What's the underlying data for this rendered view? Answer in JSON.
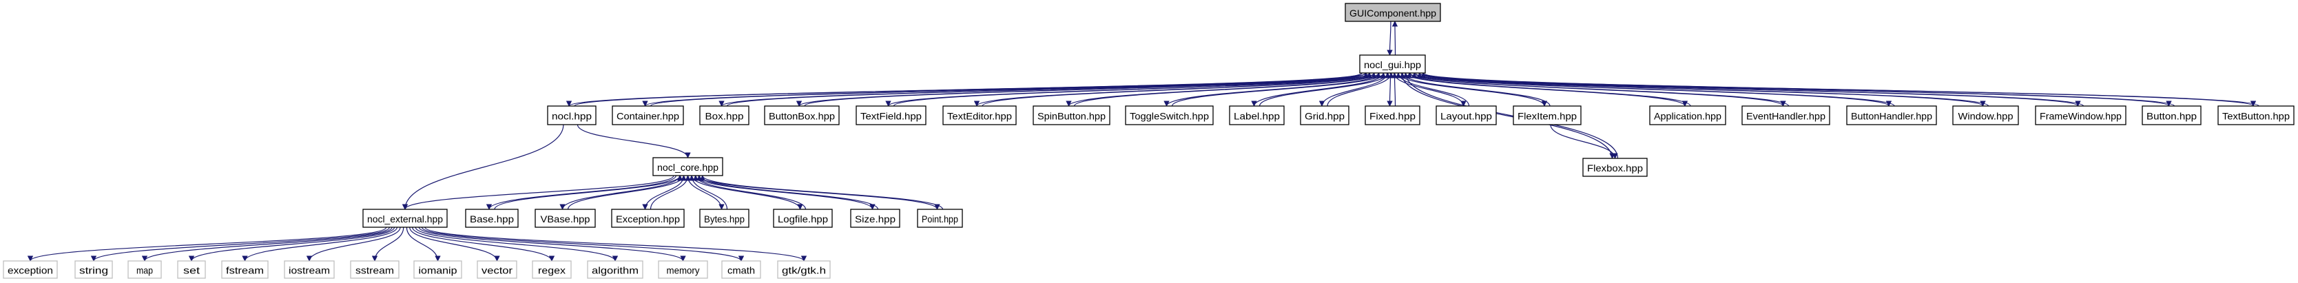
{
  "colors": {
    "edge": "#191970",
    "root_fill": "#bfbfbf",
    "external_border": "#bfbfbf",
    "node_border": "#000000"
  },
  "nodes": [
    {
      "label": "GUIComponent.hpp",
      "kind": "root"
    },
    {
      "label": "nocl_gui.hpp"
    },
    {
      "label": "nocl.hpp"
    },
    {
      "label": "Container.hpp"
    },
    {
      "label": "Box.hpp"
    },
    {
      "label": "ButtonBox.hpp"
    },
    {
      "label": "TextField.hpp"
    },
    {
      "label": "TextEditor.hpp"
    },
    {
      "label": "SpinButton.hpp"
    },
    {
      "label": "ToggleSwitch.hpp"
    },
    {
      "label": "Label.hpp"
    },
    {
      "label": "Grid.hpp"
    },
    {
      "label": "Fixed.hpp"
    },
    {
      "label": "Layout.hpp"
    },
    {
      "label": "FlexItem.hpp"
    },
    {
      "label": "Application.hpp"
    },
    {
      "label": "EventHandler.hpp"
    },
    {
      "label": "ButtonHandler.hpp"
    },
    {
      "label": "Window.hpp"
    },
    {
      "label": "FrameWindow.hpp"
    },
    {
      "label": "Button.hpp"
    },
    {
      "label": "TextButton.hpp"
    },
    {
      "label": "Flexbox.hpp"
    },
    {
      "label": "nocl_core.hpp"
    },
    {
      "label": "nocl_external.hpp"
    },
    {
      "label": "Base.hpp"
    },
    {
      "label": "VBase.hpp"
    },
    {
      "label": "Exception.hpp"
    },
    {
      "label": "Bytes.hpp"
    },
    {
      "label": "Logfile.hpp"
    },
    {
      "label": "Size.hpp"
    },
    {
      "label": "Point.hpp"
    },
    {
      "label": "exception",
      "kind": "external"
    },
    {
      "label": "string",
      "kind": "external"
    },
    {
      "label": "map",
      "kind": "external"
    },
    {
      "label": "set",
      "kind": "external"
    },
    {
      "label": "fstream",
      "kind": "external"
    },
    {
      "label": "iostream",
      "kind": "external"
    },
    {
      "label": "sstream",
      "kind": "external"
    },
    {
      "label": "iomanip",
      "kind": "external"
    },
    {
      "label": "vector",
      "kind": "external"
    },
    {
      "label": "regex",
      "kind": "external"
    },
    {
      "label": "algorithm",
      "kind": "external"
    },
    {
      "label": "memory",
      "kind": "external"
    },
    {
      "label": "cmath",
      "kind": "external"
    },
    {
      "label": "gtk/gtk.h",
      "kind": "external"
    }
  ],
  "edges": {
    "bidirectional": [
      [
        "GUIComponent.hpp",
        "nocl_gui.hpp"
      ],
      [
        "nocl_gui.hpp",
        "nocl.hpp"
      ],
      [
        "nocl_gui.hpp",
        "Container.hpp"
      ],
      [
        "nocl_gui.hpp",
        "Box.hpp"
      ],
      [
        "nocl_gui.hpp",
        "ButtonBox.hpp"
      ],
      [
        "nocl_gui.hpp",
        "TextField.hpp"
      ],
      [
        "nocl_gui.hpp",
        "TextEditor.hpp"
      ],
      [
        "nocl_gui.hpp",
        "SpinButton.hpp"
      ],
      [
        "nocl_gui.hpp",
        "ToggleSwitch.hpp"
      ],
      [
        "nocl_gui.hpp",
        "Label.hpp"
      ],
      [
        "nocl_gui.hpp",
        "Grid.hpp"
      ],
      [
        "nocl_gui.hpp",
        "Fixed.hpp"
      ],
      [
        "nocl_gui.hpp",
        "Layout.hpp"
      ],
      [
        "nocl_gui.hpp",
        "FlexItem.hpp"
      ],
      [
        "nocl_gui.hpp",
        "Application.hpp"
      ],
      [
        "nocl_gui.hpp",
        "EventHandler.hpp"
      ],
      [
        "nocl_gui.hpp",
        "ButtonHandler.hpp"
      ],
      [
        "nocl_gui.hpp",
        "Window.hpp"
      ],
      [
        "nocl_gui.hpp",
        "FrameWindow.hpp"
      ],
      [
        "nocl_gui.hpp",
        "Button.hpp"
      ],
      [
        "nocl_gui.hpp",
        "TextButton.hpp"
      ],
      [
        "nocl_gui.hpp",
        "Flexbox.hpp"
      ],
      [
        "nocl_core.hpp",
        "Base.hpp"
      ],
      [
        "nocl_core.hpp",
        "VBase.hpp"
      ],
      [
        "nocl_core.hpp",
        "Exception.hpp"
      ],
      [
        "nocl_core.hpp",
        "Bytes.hpp"
      ],
      [
        "nocl_core.hpp",
        "Logfile.hpp"
      ],
      [
        "nocl_core.hpp",
        "Size.hpp"
      ],
      [
        "nocl_core.hpp",
        "Point.hpp"
      ]
    ],
    "directed": [
      [
        "FlexItem.hpp",
        "Flexbox.hpp"
      ],
      [
        "nocl.hpp",
        "nocl_core.hpp"
      ],
      [
        "nocl.hpp",
        "nocl_external.hpp"
      ],
      [
        "nocl_core.hpp",
        "nocl_external.hpp"
      ],
      [
        "nocl_external.hpp",
        "exception"
      ],
      [
        "nocl_external.hpp",
        "string"
      ],
      [
        "nocl_external.hpp",
        "map"
      ],
      [
        "nocl_external.hpp",
        "set"
      ],
      [
        "nocl_external.hpp",
        "fstream"
      ],
      [
        "nocl_external.hpp",
        "iostream"
      ],
      [
        "nocl_external.hpp",
        "sstream"
      ],
      [
        "nocl_external.hpp",
        "iomanip"
      ],
      [
        "nocl_external.hpp",
        "vector"
      ],
      [
        "nocl_external.hpp",
        "regex"
      ],
      [
        "nocl_external.hpp",
        "algorithm"
      ],
      [
        "nocl_external.hpp",
        "memory"
      ],
      [
        "nocl_external.hpp",
        "cmath"
      ],
      [
        "nocl_external.hpp",
        "gtk/gtk.h"
      ]
    ]
  }
}
